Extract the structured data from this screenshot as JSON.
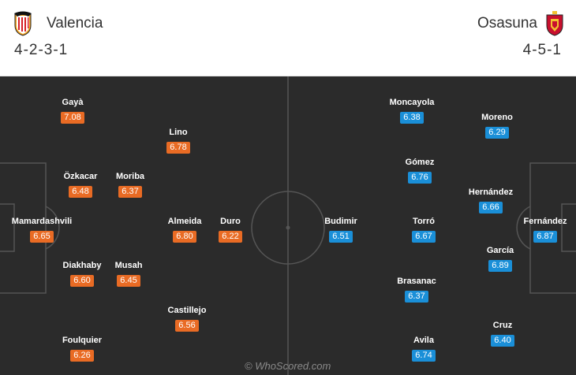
{
  "home": {
    "name": "Valencia",
    "formation": "4-2-3-1",
    "crest_icon": "valencia-bat-crest-icon",
    "rating_color": "#e96b24",
    "players": [
      {
        "name": "Gayà",
        "rating": "7.08"
      },
      {
        "name": "Lino",
        "rating": "6.78"
      },
      {
        "name": "Özkacar",
        "rating": "6.48"
      },
      {
        "name": "Moriba",
        "rating": "6.37"
      },
      {
        "name": "Mamardashvili",
        "rating": "6.65"
      },
      {
        "name": "Almeida",
        "rating": "6.80"
      },
      {
        "name": "Duro",
        "rating": "6.22"
      },
      {
        "name": "Diakhaby",
        "rating": "6.60"
      },
      {
        "name": "Musah",
        "rating": "6.45"
      },
      {
        "name": "Castillejo",
        "rating": "6.56"
      },
      {
        "name": "Foulquier",
        "rating": "6.26"
      }
    ]
  },
  "away": {
    "name": "Osasuna",
    "formation": "4-5-1",
    "crest_icon": "osasuna-shield-crest-icon",
    "rating_color": "#1a8fd8",
    "players": [
      {
        "name": "Moncayola",
        "rating": "6.38"
      },
      {
        "name": "Moreno",
        "rating": "6.29"
      },
      {
        "name": "Gómez",
        "rating": "6.76"
      },
      {
        "name": "Hernández",
        "rating": "6.66"
      },
      {
        "name": "Budimir",
        "rating": "6.51"
      },
      {
        "name": "Torró",
        "rating": "6.67"
      },
      {
        "name": "Fernández",
        "rating": "6.87"
      },
      {
        "name": "García",
        "rating": "6.89"
      },
      {
        "name": "Brasanac",
        "rating": "6.37"
      },
      {
        "name": "Cruz",
        "rating": "6.40"
      },
      {
        "name": "Avila",
        "rating": "6.74"
      }
    ]
  },
  "watermark": "© WhoScored.com"
}
